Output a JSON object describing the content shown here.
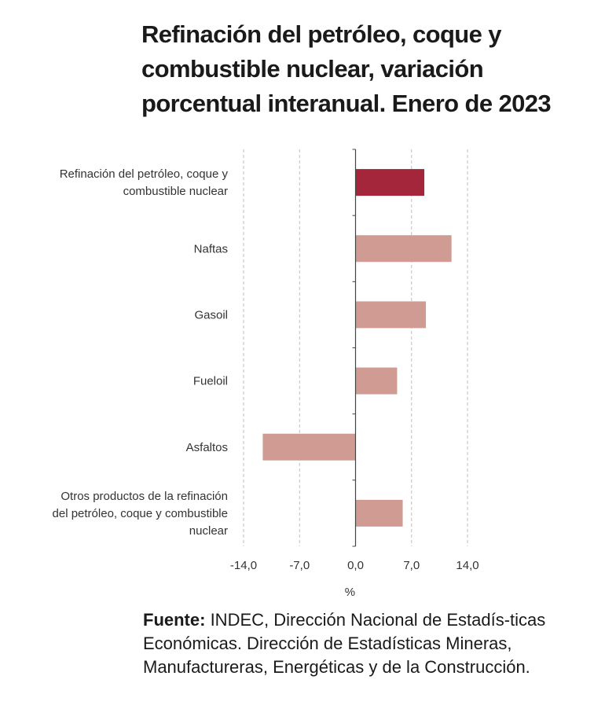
{
  "chart_data": {
    "type": "bar",
    "orientation": "horizontal",
    "title": "Refinación del petróleo, coque y combustible nuclear, variación porcentual interanual. Enero de 2023",
    "categories": [
      [
        "Refinación del petróleo, coque y",
        "combustible nuclear"
      ],
      [
        "Naftas"
      ],
      [
        "Gasoil"
      ],
      [
        "Fueloil"
      ],
      [
        "Asfaltos"
      ],
      [
        "Otros productos de la refinación",
        "del petróleo, coque y combustible",
        "nuclear"
      ]
    ],
    "values": [
      8.6,
      12.0,
      8.8,
      5.2,
      -11.6,
      5.9
    ],
    "highlight_index": 0,
    "colors": {
      "highlight": "#a3263b",
      "bar": "#cf9b93",
      "grid": "#bdbdbd",
      "axis": "#444444"
    },
    "xlim": [
      -14,
      14
    ],
    "xticks": [
      -14,
      -7,
      0,
      7,
      14
    ],
    "xtick_labels": [
      "-14,0",
      "-7,0",
      "0,0",
      "7,0",
      "14,0"
    ],
    "xlabel": "%",
    "grid": true
  },
  "source": {
    "label": "Fuente:",
    "text": " INDEC, Dirección Nacional de Estadís-ticas Económicas. Dirección de Estadísticas Mineras, Manufactureras, Energéticas y de la Construcción."
  }
}
